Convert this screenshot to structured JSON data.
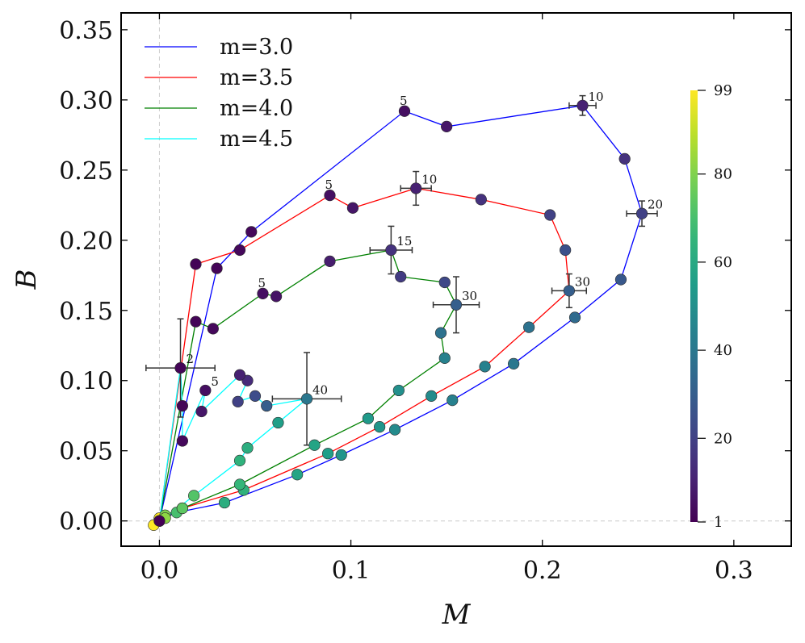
{
  "chart_data": {
    "type": "scatter",
    "xlabel": "M",
    "ylabel": "B",
    "xlim": [
      -0.02,
      0.33
    ],
    "ylim": [
      -0.018,
      0.362
    ],
    "xticks": [
      0.0,
      0.1,
      0.2,
      0.3
    ],
    "xtick_labels": [
      "0.0",
      "0.1",
      "0.2",
      "0.3"
    ],
    "yticks": [
      0.0,
      0.05,
      0.1,
      0.15,
      0.2,
      0.25,
      0.3,
      0.35
    ],
    "ytick_labels": [
      "0.00",
      "0.05",
      "0.10",
      "0.15",
      "0.20",
      "0.25",
      "0.30",
      "0.35"
    ],
    "legend_position": "top-left",
    "colorbar": {
      "label_ticks": [
        1,
        20,
        40,
        60,
        80,
        99
      ],
      "tick_labels": [
        "1",
        "20",
        "40",
        "60",
        "80",
        "99"
      ],
      "range": [
        1,
        99
      ],
      "colormap": "viridis"
    },
    "series": [
      {
        "name": "m=3.0",
        "color": "#0000ff",
        "points": [
          {
            "x": 0.0,
            "y": 0.0,
            "t": 99
          },
          {
            "x": 0.0,
            "y": 0.001,
            "t": 99
          },
          {
            "x": 0.009,
            "y": 0.006,
            "t": 70
          },
          {
            "x": 0.034,
            "y": 0.013,
            "t": 62
          },
          {
            "x": 0.072,
            "y": 0.033,
            "t": 58
          },
          {
            "x": 0.095,
            "y": 0.047,
            "t": 52
          },
          {
            "x": 0.123,
            "y": 0.065,
            "t": 48
          },
          {
            "x": 0.153,
            "y": 0.086,
            "t": 44
          },
          {
            "x": 0.185,
            "y": 0.112,
            "t": 40
          },
          {
            "x": 0.217,
            "y": 0.145,
            "t": 35
          },
          {
            "x": 0.241,
            "y": 0.172,
            "t": 28
          },
          {
            "x": 0.252,
            "y": 0.219,
            "t": 20
          },
          {
            "x": 0.243,
            "y": 0.258,
            "t": 15
          },
          {
            "x": 0.221,
            "y": 0.296,
            "t": 10
          },
          {
            "x": 0.15,
            "y": 0.281,
            "t": 7
          },
          {
            "x": 0.128,
            "y": 0.292,
            "t": 5
          },
          {
            "x": 0.048,
            "y": 0.206,
            "t": 3
          },
          {
            "x": 0.03,
            "y": 0.18,
            "t": 2
          },
          {
            "x": 0.0,
            "y": 0.0,
            "t": 1
          }
        ]
      },
      {
        "name": "m=3.5",
        "color": "#ff0000",
        "points": [
          {
            "x": 0.0,
            "y": 0.0,
            "t": 99
          },
          {
            "x": 0.0,
            "y": 0.002,
            "t": 99
          },
          {
            "x": 0.012,
            "y": 0.009,
            "t": 72
          },
          {
            "x": 0.044,
            "y": 0.022,
            "t": 64
          },
          {
            "x": 0.088,
            "y": 0.048,
            "t": 56
          },
          {
            "x": 0.115,
            "y": 0.067,
            "t": 52
          },
          {
            "x": 0.142,
            "y": 0.089,
            "t": 48
          },
          {
            "x": 0.17,
            "y": 0.11,
            "t": 44
          },
          {
            "x": 0.193,
            "y": 0.138,
            "t": 38
          },
          {
            "x": 0.214,
            "y": 0.164,
            "t": 30
          },
          {
            "x": 0.212,
            "y": 0.193,
            "t": 25
          },
          {
            "x": 0.204,
            "y": 0.218,
            "t": 20
          },
          {
            "x": 0.168,
            "y": 0.229,
            "t": 15
          },
          {
            "x": 0.134,
            "y": 0.237,
            "t": 10
          },
          {
            "x": 0.101,
            "y": 0.223,
            "t": 7
          },
          {
            "x": 0.089,
            "y": 0.232,
            "t": 5
          },
          {
            "x": 0.042,
            "y": 0.193,
            "t": 3
          },
          {
            "x": 0.019,
            "y": 0.183,
            "t": 2
          },
          {
            "x": 0.0,
            "y": 0.0,
            "t": 1
          }
        ]
      },
      {
        "name": "m=4.0",
        "color": "#008000",
        "points": [
          {
            "x": 0.0,
            "y": 0.0,
            "t": 99
          },
          {
            "x": 0.003,
            "y": 0.004,
            "t": 80
          },
          {
            "x": 0.012,
            "y": 0.009,
            "t": 74
          },
          {
            "x": 0.042,
            "y": 0.026,
            "t": 66
          },
          {
            "x": 0.081,
            "y": 0.054,
            "t": 58
          },
          {
            "x": 0.109,
            "y": 0.073,
            "t": 54
          },
          {
            "x": 0.125,
            "y": 0.093,
            "t": 50
          },
          {
            "x": 0.149,
            "y": 0.116,
            "t": 44
          },
          {
            "x": 0.147,
            "y": 0.134,
            "t": 38
          },
          {
            "x": 0.155,
            "y": 0.154,
            "t": 30
          },
          {
            "x": 0.149,
            "y": 0.17,
            "t": 22
          },
          {
            "x": 0.126,
            "y": 0.174,
            "t": 18
          },
          {
            "x": 0.121,
            "y": 0.193,
            "t": 15
          },
          {
            "x": 0.089,
            "y": 0.185,
            "t": 9
          },
          {
            "x": 0.061,
            "y": 0.16,
            "t": 6
          },
          {
            "x": 0.054,
            "y": 0.162,
            "t": 5
          },
          {
            "x": 0.028,
            "y": 0.137,
            "t": 3
          },
          {
            "x": 0.019,
            "y": 0.142,
            "t": 2
          },
          {
            "x": 0.0,
            "y": 0.0,
            "t": 1
          }
        ]
      },
      {
        "name": "m=4.5",
        "color": "#00ffff",
        "points": [
          {
            "x": -0.003,
            "y": -0.003,
            "t": 99
          },
          {
            "x": 0.003,
            "y": 0.002,
            "t": 82
          },
          {
            "x": 0.018,
            "y": 0.018,
            "t": 72
          },
          {
            "x": 0.042,
            "y": 0.043,
            "t": 64
          },
          {
            "x": 0.046,
            "y": 0.052,
            "t": 62
          },
          {
            "x": 0.062,
            "y": 0.07,
            "t": 56
          },
          {
            "x": 0.077,
            "y": 0.087,
            "t": 40
          },
          {
            "x": 0.056,
            "y": 0.082,
            "t": 30
          },
          {
            "x": 0.05,
            "y": 0.089,
            "t": 24
          },
          {
            "x": 0.041,
            "y": 0.085,
            "t": 20
          },
          {
            "x": 0.046,
            "y": 0.1,
            "t": 13
          },
          {
            "x": 0.042,
            "y": 0.104,
            "t": 10
          },
          {
            "x": 0.022,
            "y": 0.078,
            "t": 7
          },
          {
            "x": 0.024,
            "y": 0.093,
            "t": 5
          },
          {
            "x": 0.012,
            "y": 0.057,
            "t": 3
          },
          {
            "x": 0.012,
            "y": 0.082,
            "t": 2
          },
          {
            "x": 0.011,
            "y": 0.109,
            "t": 2
          },
          {
            "x": 0.0,
            "y": 0.0,
            "t": 1
          }
        ]
      }
    ],
    "error_bars": [
      {
        "x": 0.221,
        "y": 0.296,
        "xerr": 0.007,
        "yerr": 0.007
      },
      {
        "x": 0.252,
        "y": 0.219,
        "xerr": 0.008,
        "yerr": 0.009
      },
      {
        "x": 0.134,
        "y": 0.237,
        "xerr": 0.008,
        "yerr": 0.012
      },
      {
        "x": 0.214,
        "y": 0.164,
        "xerr": 0.009,
        "yerr": 0.012
      },
      {
        "x": 0.121,
        "y": 0.193,
        "xerr": 0.011,
        "yerr": 0.017
      },
      {
        "x": 0.155,
        "y": 0.154,
        "xerr": 0.012,
        "yerr": 0.02
      },
      {
        "x": 0.077,
        "y": 0.087,
        "xerr": 0.018,
        "yerr": 0.033
      },
      {
        "x": 0.011,
        "y": 0.109,
        "xerr": 0.018,
        "yerr": 0.035
      }
    ],
    "annotations": [
      {
        "text": "5",
        "x": 0.128,
        "y": 0.292
      },
      {
        "text": "10",
        "x": 0.221,
        "y": 0.296
      },
      {
        "text": "20",
        "x": 0.252,
        "y": 0.219
      },
      {
        "text": "5",
        "x": 0.089,
        "y": 0.232
      },
      {
        "text": "10",
        "x": 0.134,
        "y": 0.237
      },
      {
        "text": "30",
        "x": 0.214,
        "y": 0.164
      },
      {
        "text": "15",
        "x": 0.121,
        "y": 0.193
      },
      {
        "text": "5",
        "x": 0.054,
        "y": 0.162
      },
      {
        "text": "30",
        "x": 0.155,
        "y": 0.154
      },
      {
        "text": "2",
        "x": 0.011,
        "y": 0.109
      },
      {
        "text": "5",
        "x": 0.024,
        "y": 0.093
      },
      {
        "text": "40",
        "x": 0.077,
        "y": 0.087
      }
    ]
  }
}
